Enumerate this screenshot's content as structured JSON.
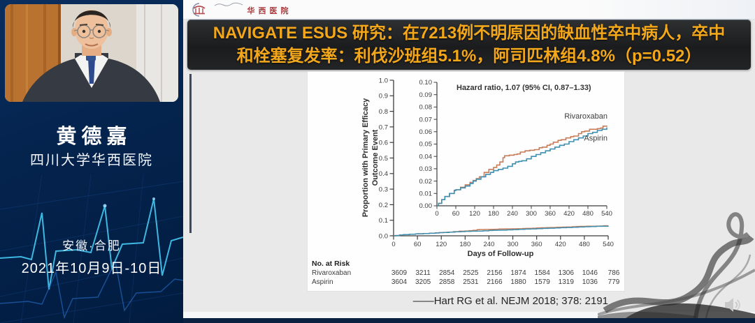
{
  "colors": {
    "sidebar_bg": "#04234d",
    "banner_text": "#f3a71b",
    "rivaroxaban": "#c77b56",
    "aspirin": "#3e8fb0",
    "ecg_line": "#45c8f2"
  },
  "icons": {
    "volume": "speaker-icon",
    "hospital_emblem": "hospital-emblem-icon"
  },
  "sidebar": {
    "speaker_name": "黄德嘉",
    "speaker_affiliation": "四川大学华西医院",
    "event_location": "安徽·合肥",
    "event_dates": "2021年10月9日-10日"
  },
  "slide": {
    "logo_text": "华西医院",
    "title_line1": "NAVIGATE ESUS 研究：在7213例不明原因的缺血性卒中病人，卒中",
    "title_line2": "和栓塞复发率：利伐沙班组5.1%，阿司匹林组4.8%（p=0.52）",
    "citation": "——Hart RG et al. NEJM 2018; 378: 2191"
  },
  "chart_data": {
    "type": "line",
    "subtype": "kaplan-meier-cumulative-incidence-with-inset",
    "ylabel_line1": "Proportion with Primary Efficacy",
    "ylabel_line2": "Outcome Event",
    "xlabel": "Days of Follow-up",
    "annotation": "Hazard ratio, 1.07 (95% CI, 0.87–1.33)",
    "xlim": [
      0,
      540
    ],
    "xticks": [
      0,
      60,
      120,
      180,
      240,
      300,
      360,
      420,
      480,
      540
    ],
    "main_ylim": [
      0,
      1.0
    ],
    "main_yticks": [
      "0.0",
      "0.1",
      "0.2",
      "0.3",
      "0.4",
      "0.5",
      "0.6",
      "0.7",
      "0.8",
      "0.9",
      "1.0"
    ],
    "inset_ylim": [
      0,
      0.1
    ],
    "inset_yticks": [
      "0.00",
      "0.01",
      "0.02",
      "0.03",
      "0.04",
      "0.05",
      "0.06",
      "0.07",
      "0.08",
      "0.09",
      "0.10"
    ],
    "grid": false,
    "legend_position": "end-of-line-labels",
    "series": [
      {
        "name": "Rivaroxaban",
        "color": "#c77b56",
        "points": [
          [
            0,
            0
          ],
          [
            5,
            0.002
          ],
          [
            15,
            0.005
          ],
          [
            25,
            0.0075
          ],
          [
            40,
            0.01
          ],
          [
            55,
            0.0125
          ],
          [
            60,
            0.013
          ],
          [
            75,
            0.015
          ],
          [
            90,
            0.017
          ],
          [
            105,
            0.019
          ],
          [
            115,
            0.0205
          ],
          [
            125,
            0.022
          ],
          [
            135,
            0.0235
          ],
          [
            150,
            0.027
          ],
          [
            165,
            0.0295
          ],
          [
            180,
            0.031
          ],
          [
            190,
            0.033
          ],
          [
            200,
            0.0355
          ],
          [
            210,
            0.039
          ],
          [
            215,
            0.0405
          ],
          [
            230,
            0.041
          ],
          [
            245,
            0.0415
          ],
          [
            255,
            0.042
          ],
          [
            265,
            0.0435
          ],
          [
            280,
            0.0445
          ],
          [
            295,
            0.045
          ],
          [
            310,
            0.0455
          ],
          [
            325,
            0.047
          ],
          [
            335,
            0.0475
          ],
          [
            350,
            0.049
          ],
          [
            360,
            0.05
          ],
          [
            370,
            0.0515
          ],
          [
            385,
            0.053
          ],
          [
            395,
            0.0535
          ],
          [
            410,
            0.055
          ],
          [
            425,
            0.056
          ],
          [
            435,
            0.0565
          ],
          [
            450,
            0.0585
          ],
          [
            460,
            0.06
          ],
          [
            470,
            0.0605
          ],
          [
            485,
            0.062
          ],
          [
            500,
            0.062
          ],
          [
            510,
            0.0625
          ],
          [
            520,
            0.063
          ],
          [
            528,
            0.0645
          ],
          [
            540,
            0.065
          ]
        ]
      },
      {
        "name": "Aspirin",
        "color": "#3e8fb0",
        "points": [
          [
            0,
            0
          ],
          [
            5,
            0.002
          ],
          [
            15,
            0.005
          ],
          [
            25,
            0.0075
          ],
          [
            40,
            0.01
          ],
          [
            55,
            0.0125
          ],
          [
            60,
            0.013
          ],
          [
            75,
            0.0145
          ],
          [
            90,
            0.016
          ],
          [
            105,
            0.018
          ],
          [
            115,
            0.02
          ],
          [
            125,
            0.0215
          ],
          [
            140,
            0.0235
          ],
          [
            155,
            0.0255
          ],
          [
            170,
            0.027
          ],
          [
            180,
            0.0285
          ],
          [
            195,
            0.0295
          ],
          [
            210,
            0.0305
          ],
          [
            225,
            0.032
          ],
          [
            240,
            0.034
          ],
          [
            250,
            0.0355
          ],
          [
            260,
            0.036
          ],
          [
            270,
            0.0365
          ],
          [
            285,
            0.038
          ],
          [
            300,
            0.04
          ],
          [
            315,
            0.0415
          ],
          [
            330,
            0.043
          ],
          [
            345,
            0.0445
          ],
          [
            360,
            0.046
          ],
          [
            375,
            0.0475
          ],
          [
            390,
            0.049
          ],
          [
            405,
            0.05
          ],
          [
            420,
            0.052
          ],
          [
            435,
            0.0535
          ],
          [
            450,
            0.055
          ],
          [
            465,
            0.0565
          ],
          [
            480,
            0.0585
          ],
          [
            495,
            0.0595
          ],
          [
            510,
            0.061
          ],
          [
            525,
            0.062
          ],
          [
            540,
            0.0635
          ]
        ]
      }
    ],
    "at_risk": {
      "header": "No. at Risk",
      "rows": [
        {
          "name": "Rivaroxaban",
          "values": [
            3609,
            3211,
            2854,
            2525,
            2156,
            1874,
            1584,
            1306,
            1046,
            786
          ]
        },
        {
          "name": "Aspirin",
          "values": [
            3604,
            3205,
            2858,
            2531,
            2166,
            1880,
            1579,
            1319,
            1036,
            779
          ]
        }
      ]
    }
  }
}
